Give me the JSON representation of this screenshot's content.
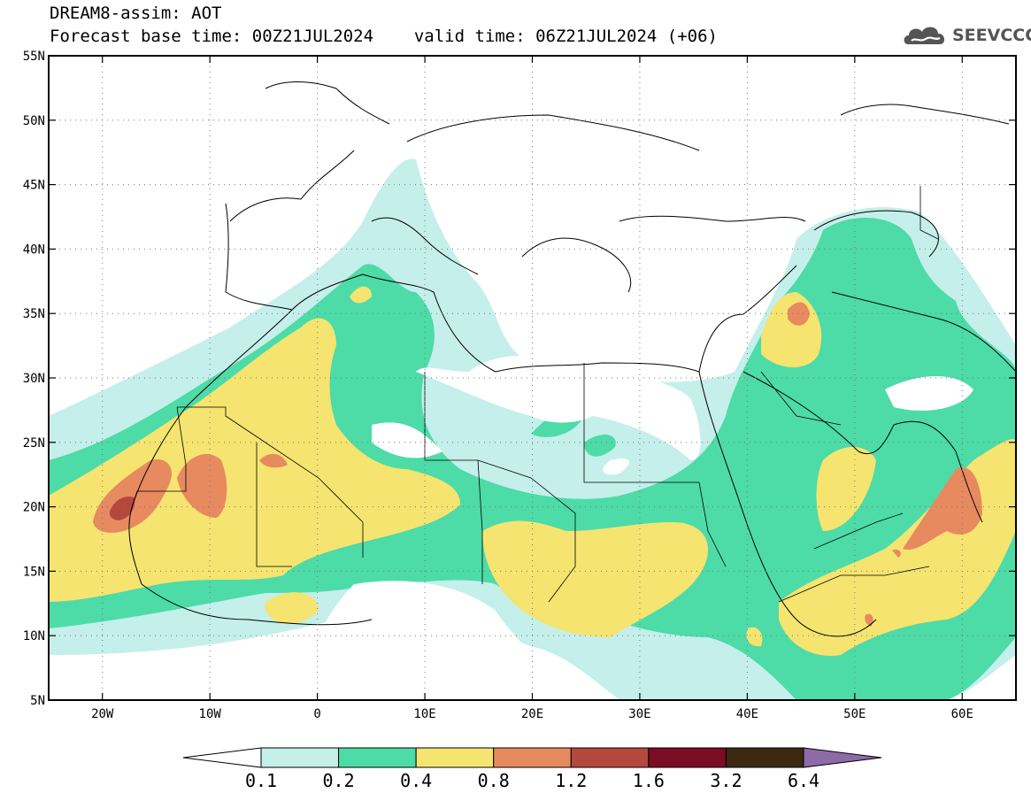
{
  "title": {
    "line1": "DREAM8-assim: AOT",
    "base_label": "Forecast base time: 00Z21JUL2024",
    "valid_label": "valid time: 06Z21JUL2024 (+06)"
  },
  "logo": {
    "text": "SEEVCCC",
    "icon": "cloud-logo-icon"
  },
  "map": {
    "lon_range": [
      -25,
      65
    ],
    "lat_range": [
      5,
      55
    ],
    "lon_ticks": [
      {
        "value": -20,
        "label": "20W"
      },
      {
        "value": -10,
        "label": "10W"
      },
      {
        "value": 0,
        "label": "0"
      },
      {
        "value": 10,
        "label": "10E"
      },
      {
        "value": 20,
        "label": "20E"
      },
      {
        "value": 30,
        "label": "30E"
      },
      {
        "value": 40,
        "label": "40E"
      },
      {
        "value": 50,
        "label": "50E"
      },
      {
        "value": 60,
        "label": "60E"
      }
    ],
    "lat_ticks": [
      {
        "value": 55,
        "label": "55N"
      },
      {
        "value": 50,
        "label": "50N"
      },
      {
        "value": 45,
        "label": "45N"
      },
      {
        "value": 40,
        "label": "40N"
      },
      {
        "value": 35,
        "label": "35N"
      },
      {
        "value": 30,
        "label": "30N"
      },
      {
        "value": 25,
        "label": "25N"
      },
      {
        "value": 20,
        "label": "20N"
      },
      {
        "value": 15,
        "label": "15N"
      },
      {
        "value": 10,
        "label": "10N"
      },
      {
        "value": 5,
        "label": "5N"
      }
    ],
    "gridlines": true
  },
  "colorbar": {
    "boundaries": [
      "0.1",
      "0.2",
      "0.4",
      "0.8",
      "1.2",
      "1.6",
      "3.2",
      "6.4"
    ],
    "colors": [
      "#c4efea",
      "#4ddba8",
      "#f5e470",
      "#e78a60",
      "#b5483c",
      "#7a0d24",
      "#3d2812",
      "#8e6aa8"
    ],
    "extend": "both"
  },
  "colors": {
    "c1": "#c4efea",
    "c2": "#4ddba8",
    "c3": "#f5e470",
    "c4": "#e78a60",
    "c5": "#b5483c"
  }
}
